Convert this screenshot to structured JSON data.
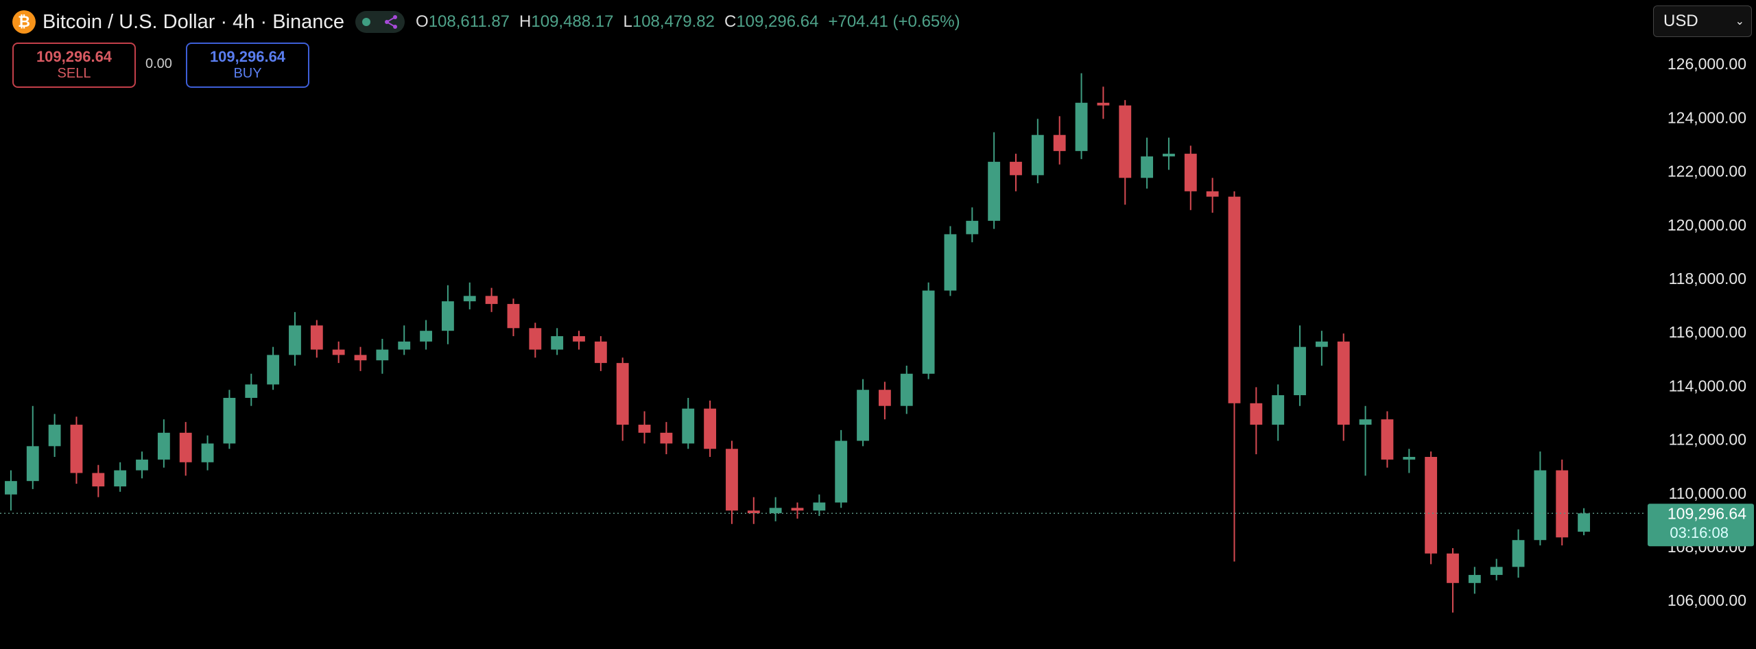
{
  "header": {
    "title": "Bitcoin / U.S. Dollar · 4h · Binance",
    "ohlc": [
      {
        "key": "O",
        "value": "108,611.87"
      },
      {
        "key": "H",
        "value": "109,488.17"
      },
      {
        "key": "L",
        "value": "108,479.82"
      },
      {
        "key": "C",
        "value": "109,296.64"
      }
    ],
    "change": "+704.41 (+0.65%)"
  },
  "order_panel": {
    "sell_price": "109,296.64",
    "sell_label": "SELL",
    "spread": "0.00",
    "buy_price": "109,296.64",
    "buy_label": "BUY"
  },
  "currency": "USD",
  "chart_data": {
    "type": "candlestick",
    "up_color": "#3f9e82",
    "down_color": "#d64a52",
    "open": [
      110000,
      110500,
      111800,
      112600,
      110800,
      110300,
      110900,
      111300,
      112300,
      111200,
      111900,
      113600,
      114100,
      115200,
      116300,
      115400,
      115200,
      115000,
      115400,
      115700,
      116100,
      117200,
      117400,
      117100,
      116200,
      115400,
      115900,
      115700,
      114900,
      112600,
      112300,
      111900,
      113200,
      111700,
      109400,
      109300,
      109500,
      109400,
      109700,
      112000,
      113900,
      113300,
      114500,
      117600,
      119700,
      120200,
      122400,
      121900,
      123400,
      122800,
      124600,
      124500,
      121800,
      122600,
      122700,
      121300,
      121100,
      113400,
      112600,
      113700,
      115500,
      115700,
      112600,
      112800,
      111300,
      111400,
      107800,
      106700,
      107000,
      107300,
      108300,
      110900,
      108611.87
    ],
    "high": [
      110900,
      113300,
      113000,
      112900,
      111100,
      111200,
      111600,
      112800,
      112700,
      112200,
      113900,
      114500,
      115500,
      116800,
      116500,
      115700,
      115500,
      115800,
      116300,
      116500,
      117800,
      117900,
      117700,
      117300,
      116400,
      116200,
      116100,
      115900,
      115100,
      113100,
      112700,
      113600,
      113500,
      112000,
      109900,
      109900,
      109700,
      110000,
      112400,
      114300,
      114200,
      114800,
      117900,
      120000,
      120700,
      123500,
      122700,
      124000,
      124100,
      125700,
      125200,
      124700,
      123300,
      123300,
      123000,
      121800,
      121300,
      114000,
      114100,
      116300,
      116100,
      116000,
      113300,
      113100,
      111700,
      111600,
      108000,
      107300,
      107600,
      108700,
      111600,
      111300,
      109488.17
    ],
    "low": [
      109400,
      110200,
      111400,
      110400,
      109900,
      110100,
      110600,
      111000,
      110700,
      110900,
      111700,
      113300,
      113900,
      114800,
      115100,
      114900,
      114600,
      114500,
      115200,
      115400,
      115600,
      116900,
      116800,
      115900,
      115100,
      115200,
      115400,
      114600,
      112000,
      111900,
      111500,
      111700,
      111400,
      108900,
      108900,
      109000,
      109100,
      109200,
      109500,
      111800,
      112800,
      113000,
      114300,
      117400,
      119400,
      119900,
      121300,
      121600,
      122300,
      122500,
      124000,
      120800,
      121400,
      122100,
      120600,
      120500,
      107500,
      111500,
      112000,
      113300,
      114800,
      112000,
      110700,
      111000,
      110800,
      107400,
      105600,
      106300,
      106800,
      106900,
      108100,
      108100,
      108479.82
    ],
    "close": [
      110500,
      111800,
      112600,
      110800,
      110300,
      110900,
      111300,
      112300,
      111200,
      111900,
      113600,
      114100,
      115200,
      116300,
      115400,
      115200,
      115000,
      115400,
      115700,
      116100,
      117200,
      117400,
      117100,
      116200,
      115400,
      115900,
      115700,
      114900,
      112600,
      112300,
      111900,
      113200,
      111700,
      109400,
      109300,
      109500,
      109400,
      109700,
      112000,
      113900,
      113300,
      114500,
      117600,
      119700,
      120200,
      122400,
      121900,
      123400,
      122800,
      124600,
      124500,
      121800,
      122600,
      122700,
      121300,
      121100,
      113400,
      112600,
      113700,
      115500,
      115700,
      112600,
      112800,
      111300,
      111400,
      107800,
      106700,
      107000,
      107300,
      108300,
      110900,
      108400,
      109296.64
    ],
    "ylim": [
      104240,
      128430
    ],
    "yticks": [
      {
        "value": 106000,
        "label": "106,000.00"
      },
      {
        "value": 108000,
        "label": "108,000.00"
      },
      {
        "value": 110000,
        "label": "110,000.00"
      },
      {
        "value": 112000,
        "label": "112,000.00"
      },
      {
        "value": 114000,
        "label": "114,000.00"
      },
      {
        "value": 116000,
        "label": "116,000.00"
      },
      {
        "value": 118000,
        "label": "118,000.00"
      },
      {
        "value": 120000,
        "label": "120,000.00"
      },
      {
        "value": 122000,
        "label": "122,000.00"
      },
      {
        "value": 124000,
        "label": "124,000.00"
      },
      {
        "value": 126000,
        "label": "126,000.00"
      }
    ],
    "last_price": {
      "value": 109296.64,
      "label": "109,296.64"
    },
    "countdown": "03:16:08"
  }
}
